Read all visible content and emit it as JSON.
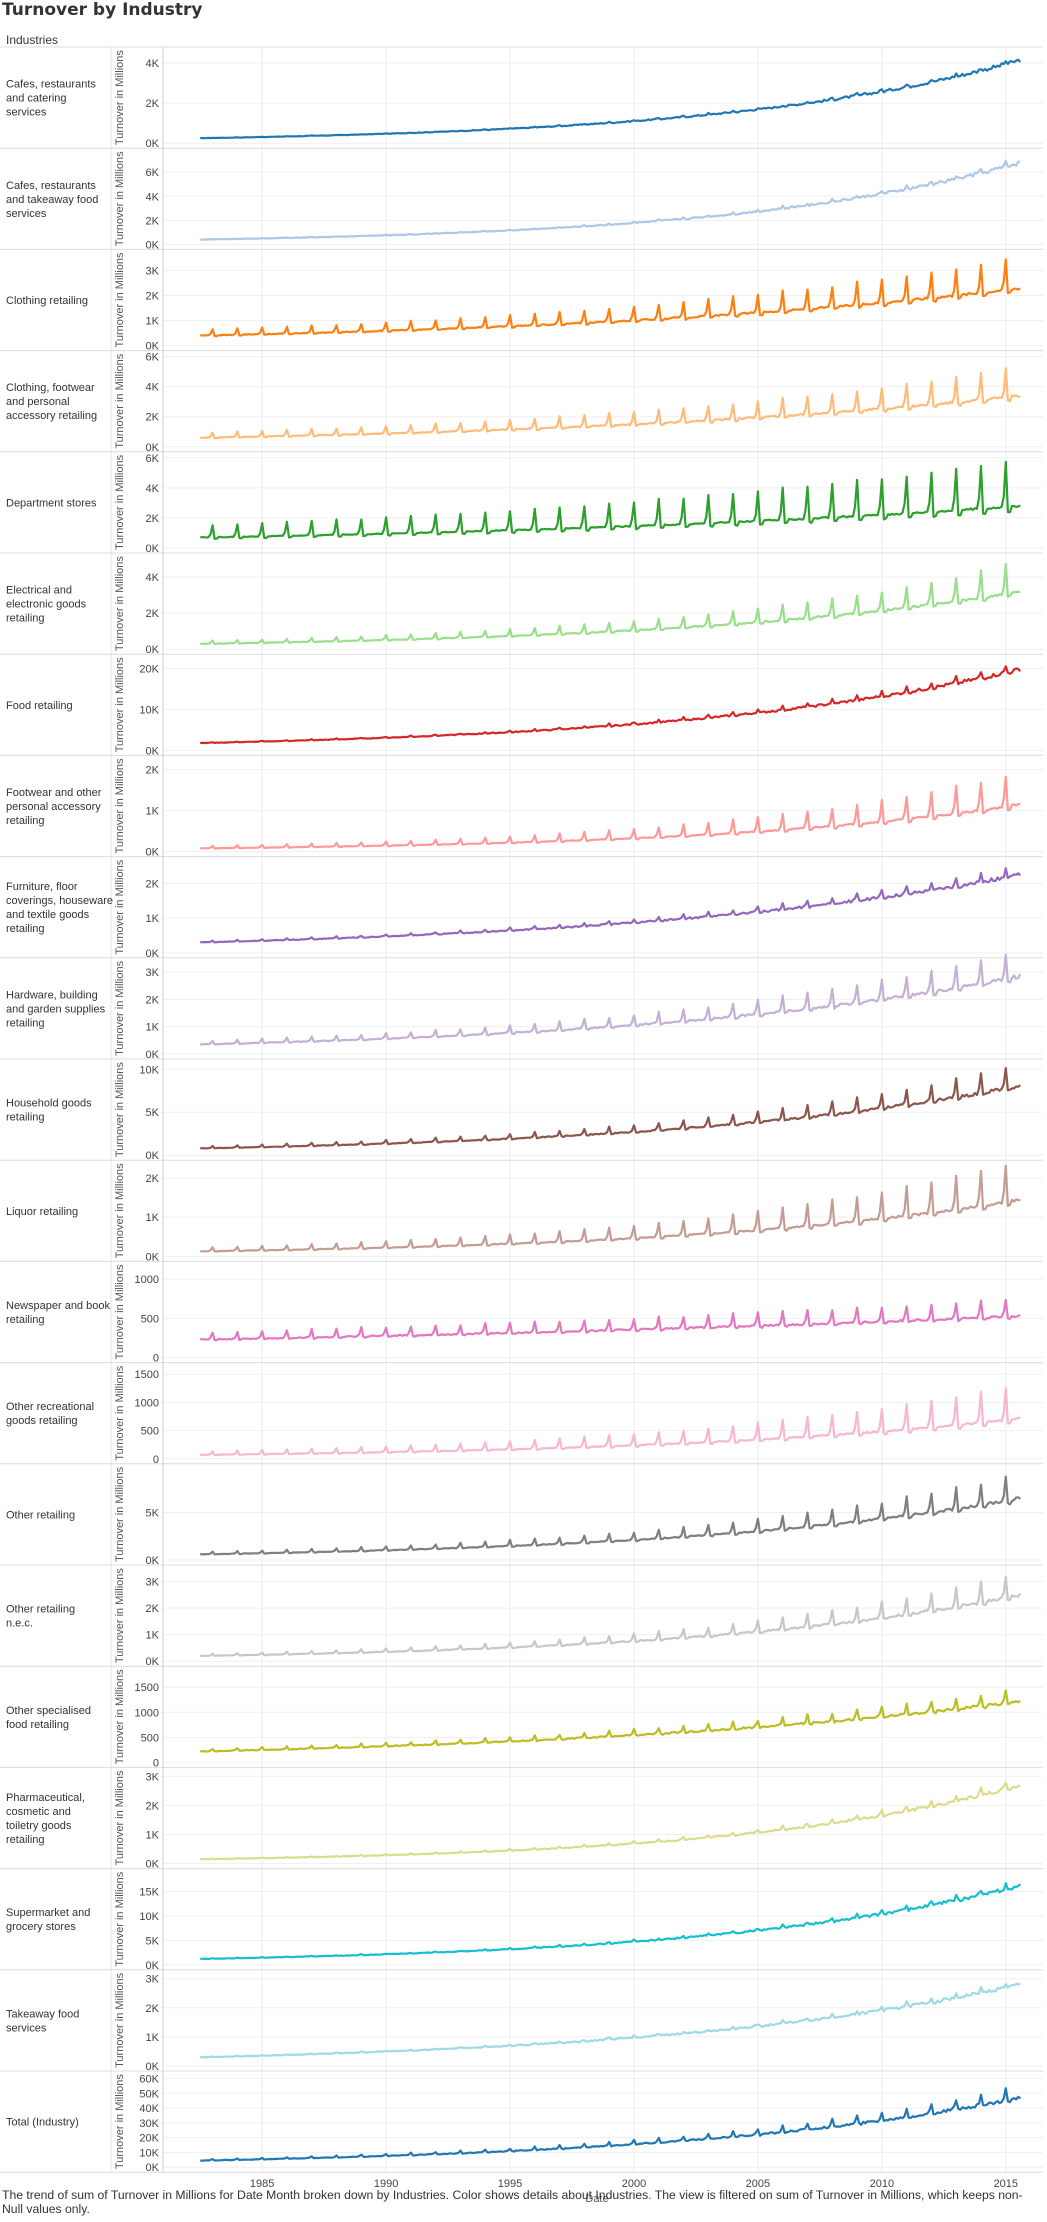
{
  "page": {
    "title": "Turnover by Industry",
    "row_header": "Industries",
    "footnote": "The trend of sum of Turnover in Millions for Date Month broken down by Industries.  Color shows details about Industries. The view is filtered on sum of Turnover in Millions, which keeps non-Null values only."
  },
  "chart_data": {
    "type": "line",
    "xlabel": "Date",
    "ylabel": "Turnover in Millions",
    "x_range": [
      1982.5,
      2015.6
    ],
    "x_axis_range": [
      1981,
      2016.5
    ],
    "x_ticks": [
      1985,
      1990,
      1995,
      2000,
      2005,
      2010,
      2015
    ],
    "x_tick_labels": [
      "1985",
      "1990",
      "1995",
      "2000",
      "2005",
      "2010",
      "2015"
    ],
    "grid": true,
    "series": [
      {
        "name": "Cafes, restaurants and catering services",
        "color": "#1f77b4",
        "start": 250,
        "end": 4150,
        "seasonal": 0.04,
        "ymax": 4500,
        "ticks": [
          0,
          2000,
          4000
        ],
        "tick_labels": [
          "0K",
          "2K",
          "4K"
        ]
      },
      {
        "name": "Cafes, restaurants and takeaway food services",
        "color": "#aec7e8",
        "start": 400,
        "end": 6800,
        "seasonal": 0.05,
        "ymax": 7500,
        "ticks": [
          0,
          2000,
          4000,
          6000
        ],
        "tick_labels": [
          "0K",
          "2K",
          "4K",
          "6K"
        ]
      },
      {
        "name": "Clothing retailing",
        "color": "#ff7f0e",
        "start": 400,
        "end": 2300,
        "seasonal": 0.55,
        "ymax": 3600,
        "ticks": [
          0,
          1000,
          2000,
          3000
        ],
        "tick_labels": [
          "0K",
          "1K",
          "2K",
          "3K"
        ]
      },
      {
        "name": "Clothing, footwear and personal accessory retailing",
        "color": "#ffbb78",
        "start": 600,
        "end": 3400,
        "seasonal": 0.55,
        "ymax": 6000,
        "ticks": [
          0,
          2000,
          4000,
          6000
        ],
        "tick_labels": [
          "0K",
          "2K",
          "4K",
          "6K"
        ]
      },
      {
        "name": "Department stores",
        "color": "#2ca02c",
        "start": 700,
        "end": 2800,
        "seasonal": 1.1,
        "ymax": 6000,
        "ticks": [
          0,
          2000,
          4000,
          6000
        ],
        "tick_labels": [
          "0K",
          "2K",
          "4K",
          "6K"
        ]
      },
      {
        "name": "Electrical and electronic goods retailing",
        "color": "#98df8a",
        "start": 300,
        "end": 3200,
        "seasonal": 0.5,
        "ymax": 5000,
        "ticks": [
          0,
          2000,
          4000
        ],
        "tick_labels": [
          "0K",
          "2K",
          "4K"
        ]
      },
      {
        "name": "Food retailing",
        "color": "#d62728",
        "start": 1800,
        "end": 19800,
        "seasonal": 0.08,
        "ymax": 22000,
        "ticks": [
          0,
          10000,
          20000
        ],
        "tick_labels": [
          "0K",
          "10K",
          "20K"
        ]
      },
      {
        "name": "Footwear and other personal accessory retailing",
        "color": "#ff9896",
        "start": 80,
        "end": 1150,
        "seasonal": 0.7,
        "ymax": 2200,
        "ticks": [
          0,
          1000,
          2000
        ],
        "tick_labels": [
          "0K",
          "1K",
          "2K"
        ]
      },
      {
        "name": "Furniture, floor coverings, houseware and textile goods retailing",
        "color": "#9467bd",
        "start": 300,
        "end": 2250,
        "seasonal": 0.12,
        "ymax": 2600,
        "ticks": [
          0,
          1000,
          2000
        ],
        "tick_labels": [
          "0K",
          "1K",
          "2K"
        ]
      },
      {
        "name": "Hardware, building and garden supplies retailing",
        "color": "#c5b0d5",
        "start": 350,
        "end": 2850,
        "seasonal": 0.35,
        "ymax": 3300,
        "ticks": [
          0,
          1000,
          2000,
          3000
        ],
        "tick_labels": [
          "0K",
          "1K",
          "2K",
          "3K"
        ]
      },
      {
        "name": "Household goods retailing",
        "color": "#8c564b",
        "start": 800,
        "end": 8100,
        "seasonal": 0.3,
        "ymax": 10500,
        "ticks": [
          0,
          5000,
          10000
        ],
        "tick_labels": [
          "0K",
          "5K",
          "10K"
        ]
      },
      {
        "name": "Liquor retailing",
        "color": "#c49c94",
        "start": 130,
        "end": 1450,
        "seasonal": 0.7,
        "ymax": 2300,
        "ticks": [
          0,
          1000,
          2000
        ],
        "tick_labels": [
          "0K",
          "1K",
          "2K"
        ]
      },
      {
        "name": "Newspaper and book retailing",
        "color": "#e377c2",
        "start": 230,
        "end": 530,
        "seasonal": 0.4,
        "ymax": 1150,
        "ticks": [
          0,
          500,
          1000
        ],
        "tick_labels": [
          "0",
          "500",
          "1000"
        ]
      },
      {
        "name": "Other recreational goods retailing",
        "color": "#f7b6d2",
        "start": 70,
        "end": 720,
        "seasonal": 0.85,
        "ymax": 1600,
        "ticks": [
          0,
          500,
          1000,
          1500
        ],
        "tick_labels": [
          "0",
          "500",
          "1000",
          "1500"
        ]
      },
      {
        "name": "Other retailing",
        "color": "#7f7f7f",
        "start": 600,
        "end": 6500,
        "seasonal": 0.4,
        "ymax": 9500,
        "ticks": [
          0,
          5000
        ],
        "tick_labels": [
          "0K",
          "5K"
        ]
      },
      {
        "name": "Other retailing n.e.c.",
        "color": "#c7c7c7",
        "start": 200,
        "end": 2500,
        "seasonal": 0.35,
        "ymax": 3400,
        "ticks": [
          0,
          1000,
          2000,
          3000
        ],
        "tick_labels": [
          "0K",
          "1K",
          "2K",
          "3K"
        ]
      },
      {
        "name": "Other specialised food retailing",
        "color": "#bcbd22",
        "start": 220,
        "end": 1220,
        "seasonal": 0.2,
        "ymax": 1800,
        "ticks": [
          0,
          500,
          1000,
          1500
        ],
        "tick_labels": [
          "0",
          "500",
          "1000",
          "1500"
        ]
      },
      {
        "name": "Pharmaceutical, cosmetic and toiletry goods retailing",
        "color": "#dbdb8d",
        "start": 150,
        "end": 2700,
        "seasonal": 0.1,
        "ymax": 3100,
        "ticks": [
          0,
          1000,
          2000,
          3000
        ],
        "tick_labels": [
          "0K",
          "1K",
          "2K",
          "3K"
        ]
      },
      {
        "name": "Supermarket and grocery stores",
        "color": "#17becf",
        "start": 1200,
        "end": 16200,
        "seasonal": 0.07,
        "ymax": 18500,
        "ticks": [
          0,
          5000,
          10000,
          15000
        ],
        "tick_labels": [
          "0K",
          "5K",
          "10K",
          "15K"
        ]
      },
      {
        "name": "Takeaway food services",
        "color": "#9edae5",
        "start": 300,
        "end": 2800,
        "seasonal": 0.06,
        "ymax": 3100,
        "ticks": [
          0,
          1000,
          2000,
          3000
        ],
        "tick_labels": [
          "0K",
          "1K",
          "2K",
          "3K"
        ]
      },
      {
        "name": "Total (Industry)",
        "color": "#1f77b4",
        "start": 4500,
        "end": 47000,
        "seasonal": 0.17,
        "ymax": 61000,
        "ticks": [
          0,
          10000,
          20000,
          30000,
          40000,
          50000,
          60000
        ],
        "tick_labels": [
          "0K",
          "10K",
          "20K",
          "30K",
          "40K",
          "50K",
          "60K"
        ]
      }
    ]
  }
}
